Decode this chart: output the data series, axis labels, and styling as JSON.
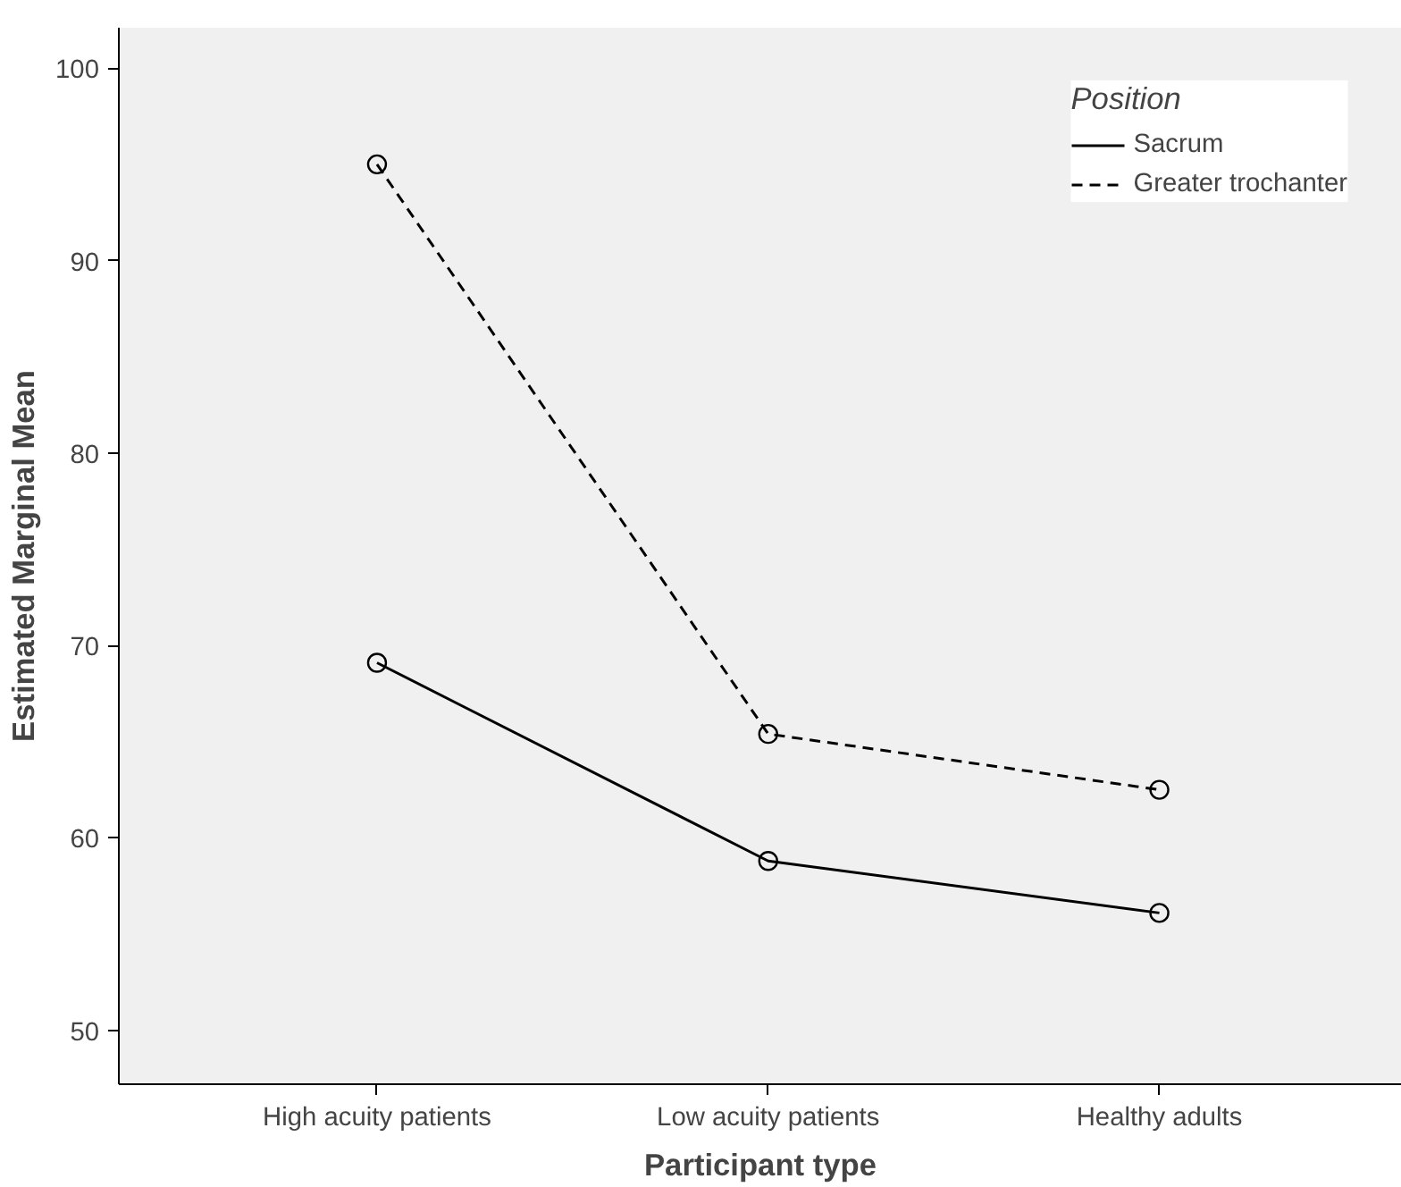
{
  "chart_data": {
    "type": "line",
    "xlabel": "Participant type",
    "ylabel": "Estimated Marginal Mean",
    "legend_title": "Position",
    "categories": [
      "High acuity patients",
      "Low acuity patients",
      "Healthy adults"
    ],
    "series": [
      {
        "name": "Sacrum",
        "color": "#000000",
        "values": [
          69.1,
          58.8,
          56.1
        ],
        "line_style": "solid"
      },
      {
        "name": "Greater trochanter",
        "color": "#000000",
        "values": [
          95.0,
          65.4,
          62.5
        ],
        "line_style": "dashed"
      }
    ],
    "ylim": [
      47.2,
      102.1
    ],
    "yticks": [
      50,
      60,
      70,
      80,
      90,
      100
    ],
    "grid": false,
    "legend": "top right",
    "marker": "circle"
  }
}
